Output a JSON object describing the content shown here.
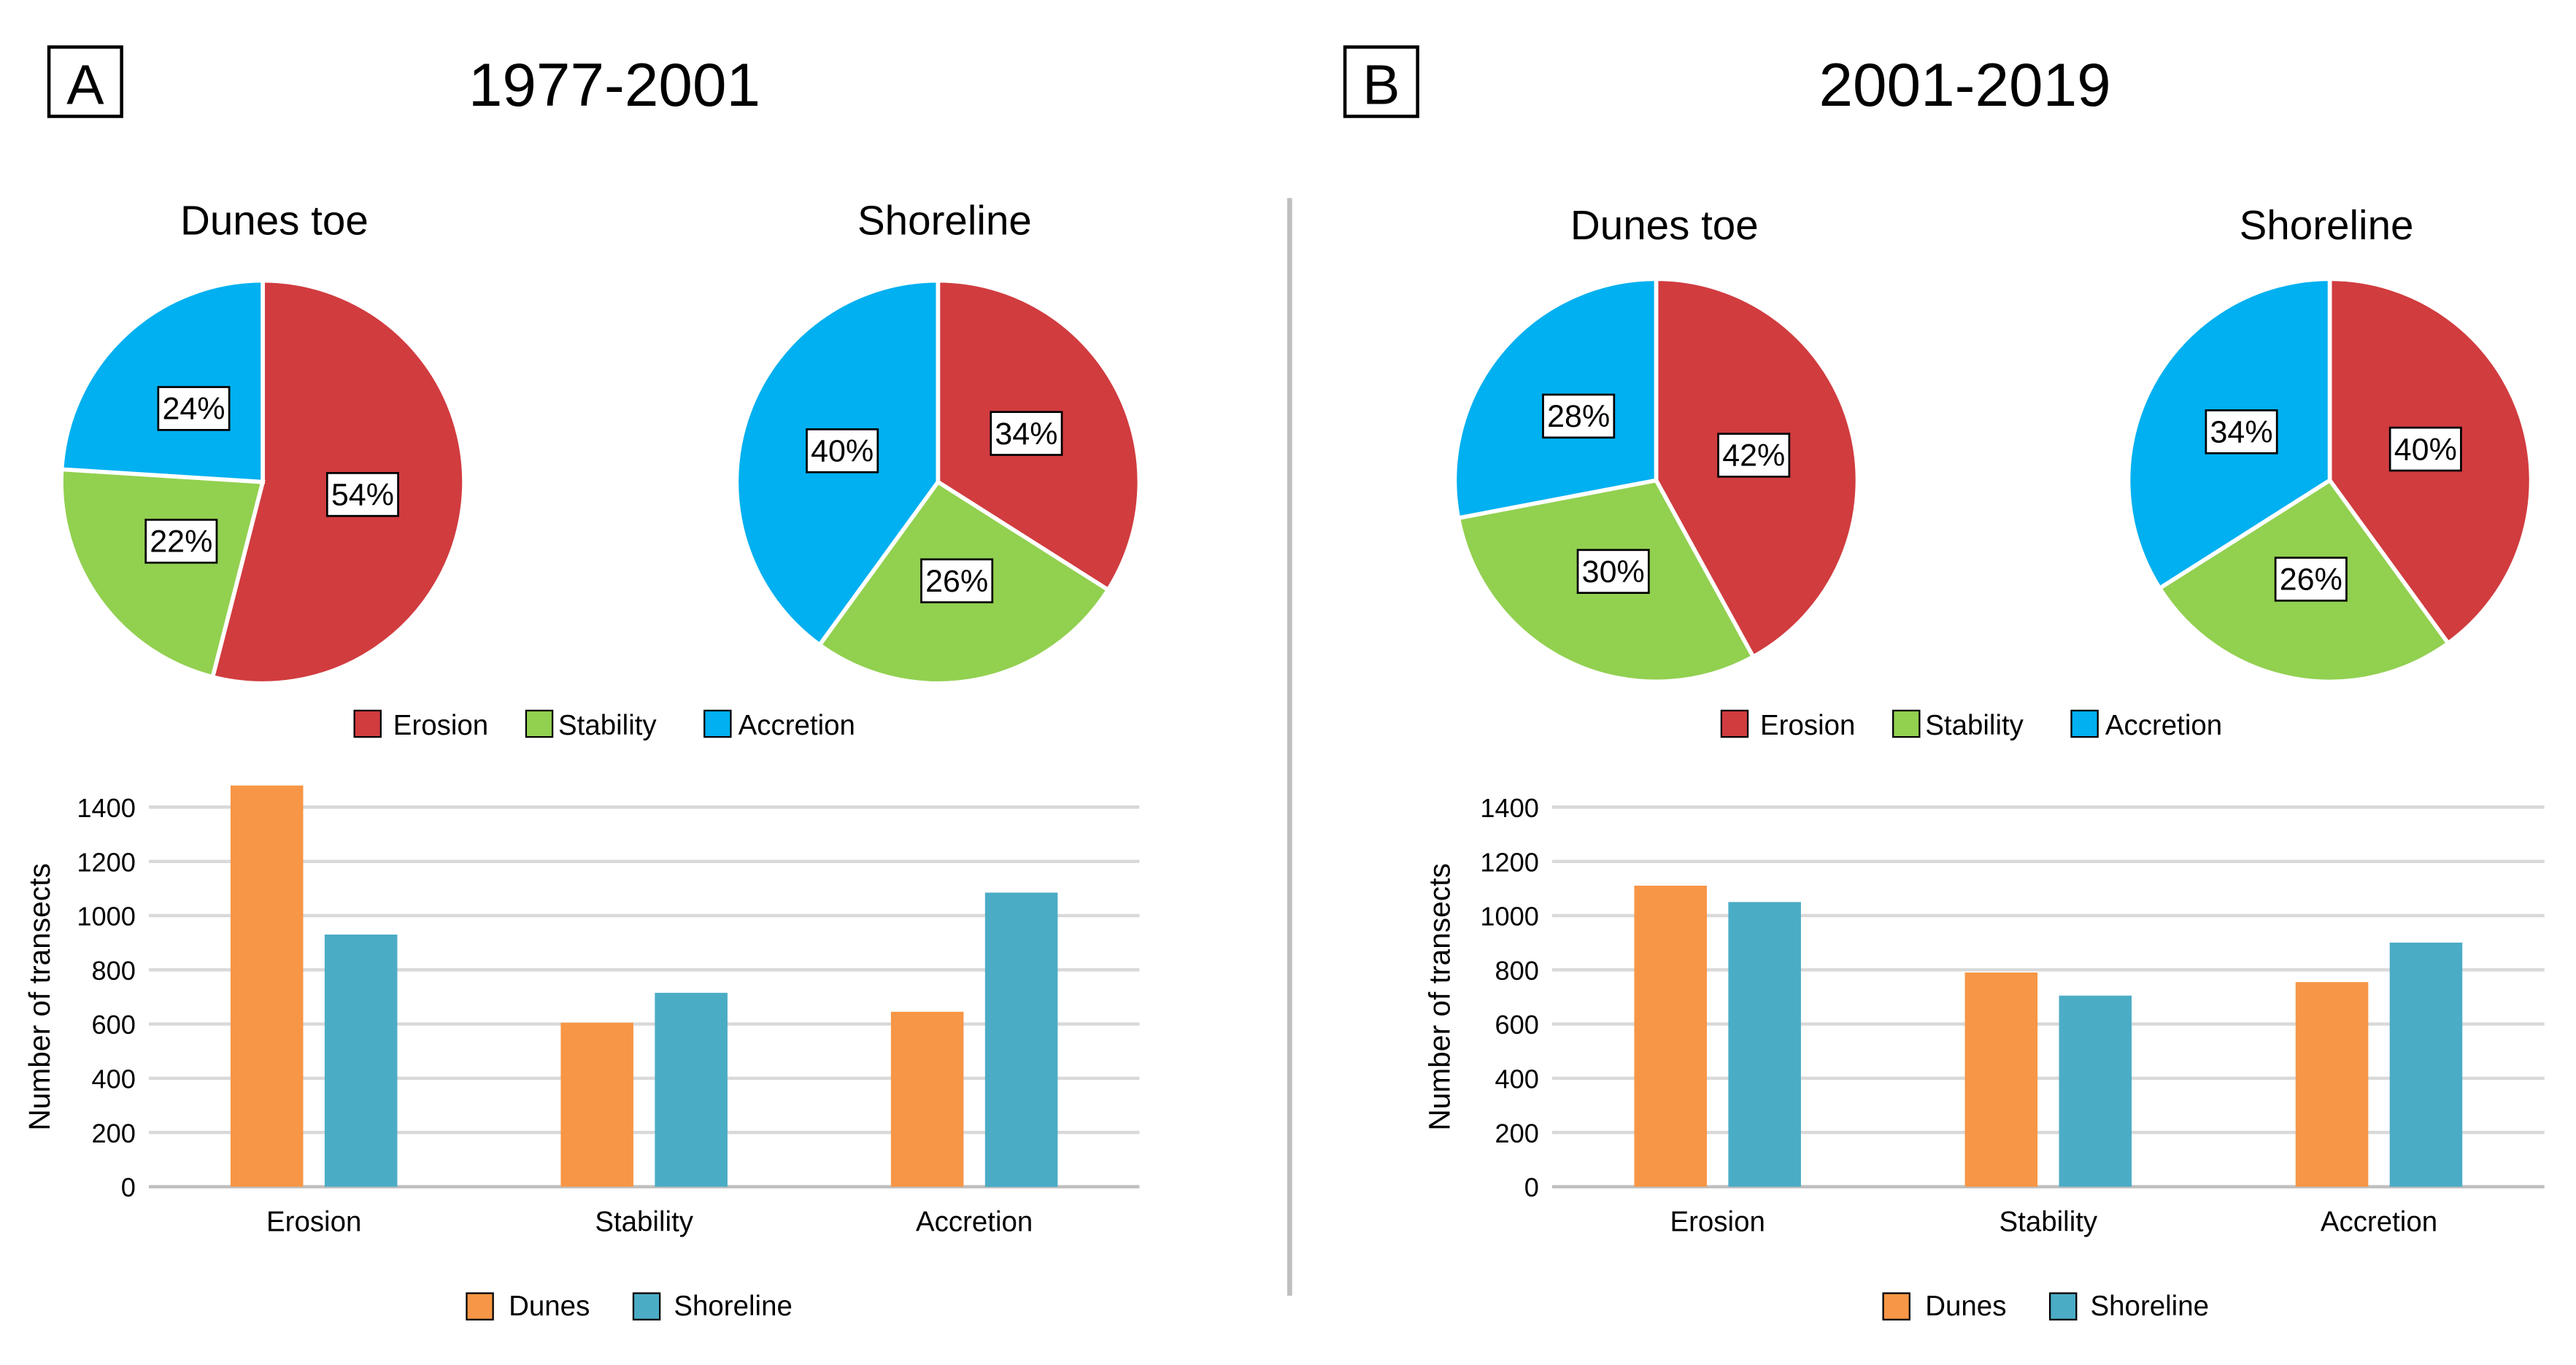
{
  "colors": {
    "erosion": "#d13c3f",
    "stability": "#92d050",
    "accretion": "#00b0f0",
    "dunes": "#f79646",
    "shoreline": "#4bacc6",
    "grid": "#d9d9d9",
    "divider": "#bfbfbf"
  },
  "pie_legend": [
    "Erosion",
    "Stability",
    "Accretion"
  ],
  "bar_legend": [
    "Dunes",
    "Shoreline"
  ],
  "panels": [
    {
      "label": "A",
      "period": "1977-2001",
      "pies": [
        {
          "title": "Dunes toe",
          "slices": [
            {
              "name": "Erosion",
              "value": 54,
              "label": "54%"
            },
            {
              "name": "Stability",
              "value": 22,
              "label": "22%"
            },
            {
              "name": "Accretion",
              "value": 24,
              "label": "24%"
            }
          ]
        },
        {
          "title": "Shoreline",
          "slices": [
            {
              "name": "Erosion",
              "value": 34,
              "label": "34%"
            },
            {
              "name": "Stability",
              "value": 26,
              "label": "26%"
            },
            {
              "name": "Accretion",
              "value": 40,
              "label": "40%"
            }
          ]
        }
      ]
    },
    {
      "label": "B",
      "period": "2001-2019",
      "pies": [
        {
          "title": "Dunes toe",
          "slices": [
            {
              "name": "Erosion",
              "value": 42,
              "label": "42%"
            },
            {
              "name": "Stability",
              "value": 30,
              "label": "30%"
            },
            {
              "name": "Accretion",
              "value": 28,
              "label": "28%"
            }
          ]
        },
        {
          "title": "Shoreline",
          "slices": [
            {
              "name": "Erosion",
              "value": 40,
              "label": "40%"
            },
            {
              "name": "Stability",
              "value": 26,
              "label": "26%"
            },
            {
              "name": "Accretion",
              "value": 34,
              "label": "34%"
            }
          ]
        }
      ]
    }
  ],
  "chart_data": [
    {
      "type": "pie",
      "panel": "A",
      "period": "1977-2001",
      "title": "Dunes toe",
      "categories": [
        "Erosion",
        "Stability",
        "Accretion"
      ],
      "values": [
        54,
        22,
        24
      ],
      "unit": "%"
    },
    {
      "type": "pie",
      "panel": "A",
      "period": "1977-2001",
      "title": "Shoreline",
      "categories": [
        "Erosion",
        "Stability",
        "Accretion"
      ],
      "values": [
        34,
        26,
        40
      ],
      "unit": "%"
    },
    {
      "type": "pie",
      "panel": "B",
      "period": "2001-2019",
      "title": "Dunes toe",
      "categories": [
        "Erosion",
        "Stability",
        "Accretion"
      ],
      "values": [
        42,
        30,
        28
      ],
      "unit": "%"
    },
    {
      "type": "pie",
      "panel": "B",
      "period": "2001-2019",
      "title": "Shoreline",
      "categories": [
        "Erosion",
        "Stability",
        "Accretion"
      ],
      "values": [
        40,
        26,
        34
      ],
      "unit": "%"
    },
    {
      "type": "bar",
      "panel": "A",
      "period": "1977-2001",
      "categories": [
        "Erosion",
        "Stability",
        "Accretion"
      ],
      "series": [
        {
          "name": "Dunes",
          "values": [
            1480,
            605,
            645
          ]
        },
        {
          "name": "Shoreline",
          "values": [
            930,
            715,
            1085
          ]
        }
      ],
      "xlabel": "",
      "ylabel": "Number of transects",
      "ylim": [
        0,
        1400
      ],
      "yticks": [
        0,
        200,
        400,
        600,
        800,
        1000,
        1200,
        1400
      ],
      "grid": true,
      "legend": "bottom"
    },
    {
      "type": "bar",
      "panel": "B",
      "period": "2001-2019",
      "categories": [
        "Erosion",
        "Stability",
        "Accretion"
      ],
      "series": [
        {
          "name": "Dunes",
          "values": [
            1110,
            790,
            755
          ]
        },
        {
          "name": "Shoreline",
          "values": [
            1050,
            705,
            900
          ]
        }
      ],
      "xlabel": "",
      "ylabel": "Number of transects",
      "ylim": [
        0,
        1400
      ],
      "yticks": [
        0,
        200,
        400,
        600,
        800,
        1000,
        1200,
        1400
      ],
      "grid": true,
      "legend": "bottom"
    }
  ]
}
